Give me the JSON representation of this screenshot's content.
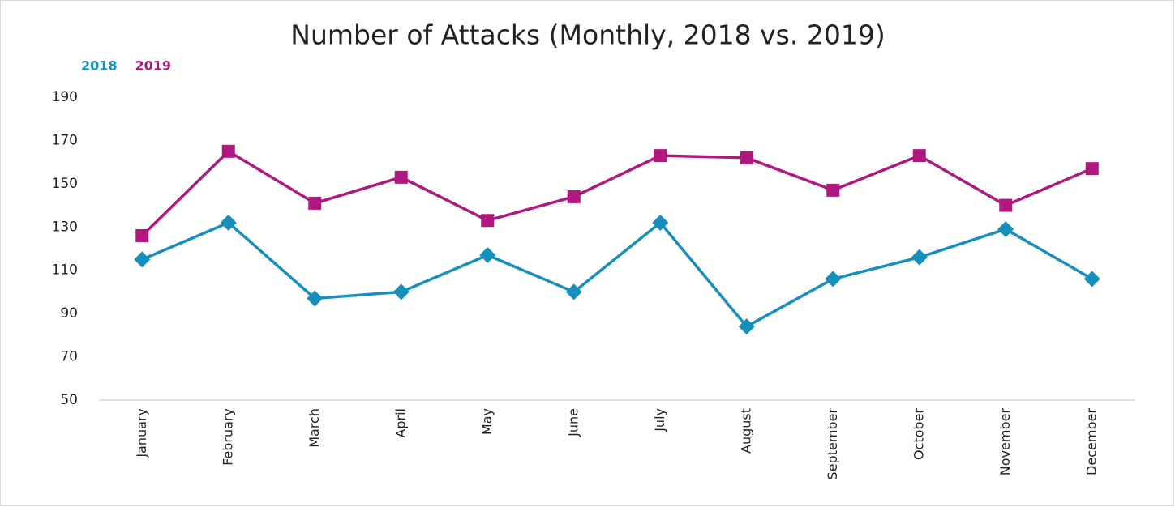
{
  "chart_data": {
    "type": "line",
    "title": "Number of Attacks (Monthly, 2018 vs. 2019)",
    "categories": [
      "January",
      "February",
      "March",
      "April",
      "May",
      "June",
      "July",
      "August",
      "September",
      "October",
      "November",
      "December"
    ],
    "series": [
      {
        "name": "2018",
        "color": "#1590bd",
        "marker": "diamond",
        "values": [
          115,
          132,
          97,
          100,
          117,
          100,
          132,
          84,
          106,
          116,
          129,
          106
        ]
      },
      {
        "name": "2019",
        "color": "#b0177f",
        "marker": "square",
        "values": [
          126,
          165,
          141,
          153,
          133,
          144,
          163,
          162,
          147,
          163,
          140,
          157
        ]
      }
    ],
    "ylim": [
      50,
      190
    ],
    "yticks": [
      50,
      70,
      90,
      110,
      130,
      150,
      170,
      190
    ],
    "grid": false
  }
}
